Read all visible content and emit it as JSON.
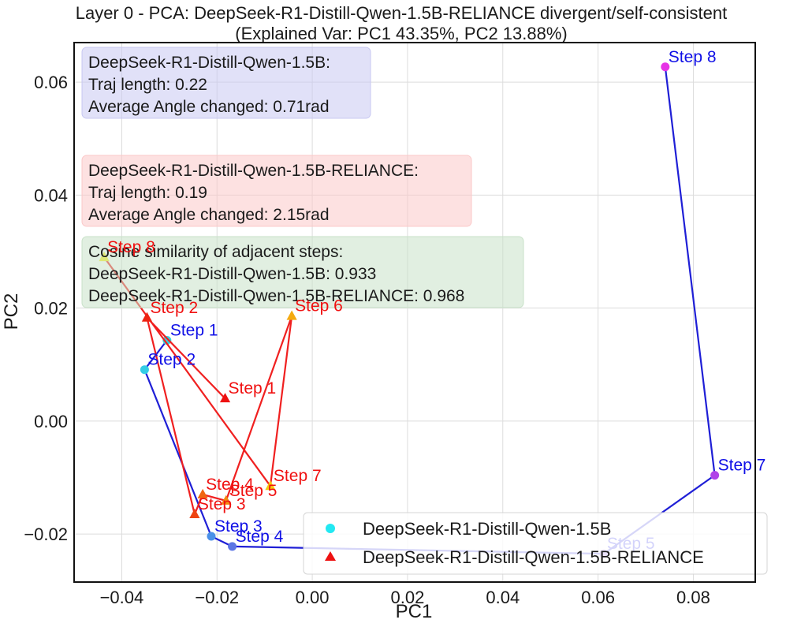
{
  "chart_data": {
    "type": "line",
    "title_line1": "Layer 0 - PCA: DeepSeek-R1-Distill-Qwen-1.5B-RELIANCE divergent/self-consistent",
    "title_line2": "(Explained Var: PC1 43.35%, PC2 13.88%)",
    "xlabel": "PC1",
    "ylabel": "PC2",
    "xlim": [
      -0.05,
      0.093
    ],
    "ylim": [
      -0.0285,
      0.067
    ],
    "xticks": [
      -0.04,
      -0.02,
      0.0,
      0.02,
      0.04,
      0.06,
      0.08
    ],
    "xtick_labels": [
      "−0.04",
      "−0.02",
      "0.00",
      "0.02",
      "0.04",
      "0.06",
      "0.08"
    ],
    "yticks": [
      -0.02,
      0.0,
      0.02,
      0.04,
      0.06
    ],
    "ytick_labels": [
      "−0.02",
      "0.00",
      "0.02",
      "0.04",
      "0.06"
    ],
    "grid": true,
    "legend_position": "lower-right",
    "series": [
      {
        "name": "DeepSeek-R1-Distill-Qwen-1.5B",
        "marker": "circle",
        "line_color": "#1f1fd6",
        "label_color": "#1010e6",
        "points": [
          {
            "label": "Step 1",
            "x": -0.0305,
            "y": 0.0143,
            "color": "#33d2e0"
          },
          {
            "label": "Step 2",
            "x": -0.0352,
            "y": 0.0091,
            "color": "#33cce6"
          },
          {
            "label": "Step 3",
            "x": -0.0212,
            "y": -0.0204,
            "color": "#4a90e8"
          },
          {
            "label": "Step 4",
            "x": -0.0168,
            "y": -0.0222,
            "color": "#5b75e4"
          },
          {
            "label": "Step 5",
            "x": 0.0612,
            "y": -0.0235,
            "color": "#8a60e6"
          },
          {
            "label": "Step 7",
            "x": 0.0845,
            "y": -0.0096,
            "color": "#b042e8"
          },
          {
            "label": "Step 8",
            "x": 0.0741,
            "y": 0.0627,
            "color": "#e633e6"
          }
        ]
      },
      {
        "name": "DeepSeek-R1-Distill-Qwen-1.5B-RELIANCE",
        "marker": "triangle",
        "line_color": "#f02020",
        "label_color": "#f01010",
        "points": [
          {
            "label": "Step 1",
            "x": -0.0183,
            "y": 0.004,
            "color": "#ee1111"
          },
          {
            "label": "Step 2",
            "x": -0.0347,
            "y": 0.0183,
            "color": "#ee2211"
          },
          {
            "label": "Step 3",
            "x": -0.0247,
            "y": -0.0165,
            "color": "#ee4411"
          },
          {
            "label": "Step 4",
            "x": -0.023,
            "y": -0.013,
            "color": "#f06611"
          },
          {
            "label": "Step 5",
            "x": -0.0181,
            "y": -0.0141,
            "color": "#f28811"
          },
          {
            "label": "Step 6",
            "x": -0.0043,
            "y": 0.0186,
            "color": "#f4aa11"
          },
          {
            "label": "Step 7",
            "x": -0.0088,
            "y": -0.0115,
            "color": "#f6cc11"
          },
          {
            "label": "Step 8",
            "x": -0.0437,
            "y": 0.029,
            "color": "#f8ee11"
          }
        ]
      }
    ],
    "info_boxes": [
      {
        "color": "#c8c8f2",
        "lines": [
          "DeepSeek-R1-Distill-Qwen-1.5B:",
          "Traj length: 0.22",
          "Average Angle changed: 0.71rad"
        ]
      },
      {
        "color": "#fbc9c9",
        "lines": [
          "DeepSeek-R1-Distill-Qwen-1.5B-RELIANCE:",
          "Traj length: 0.19",
          "Average Angle changed: 2.15rad"
        ]
      },
      {
        "color": "#c9e2c9",
        "lines": [
          "Cosine similarity of adjacent steps:",
          "DeepSeek-R1-Distill-Qwen-1.5B: 0.933",
          "DeepSeek-R1-Distill-Qwen-1.5B-RELIANCE: 0.968"
        ]
      }
    ]
  }
}
